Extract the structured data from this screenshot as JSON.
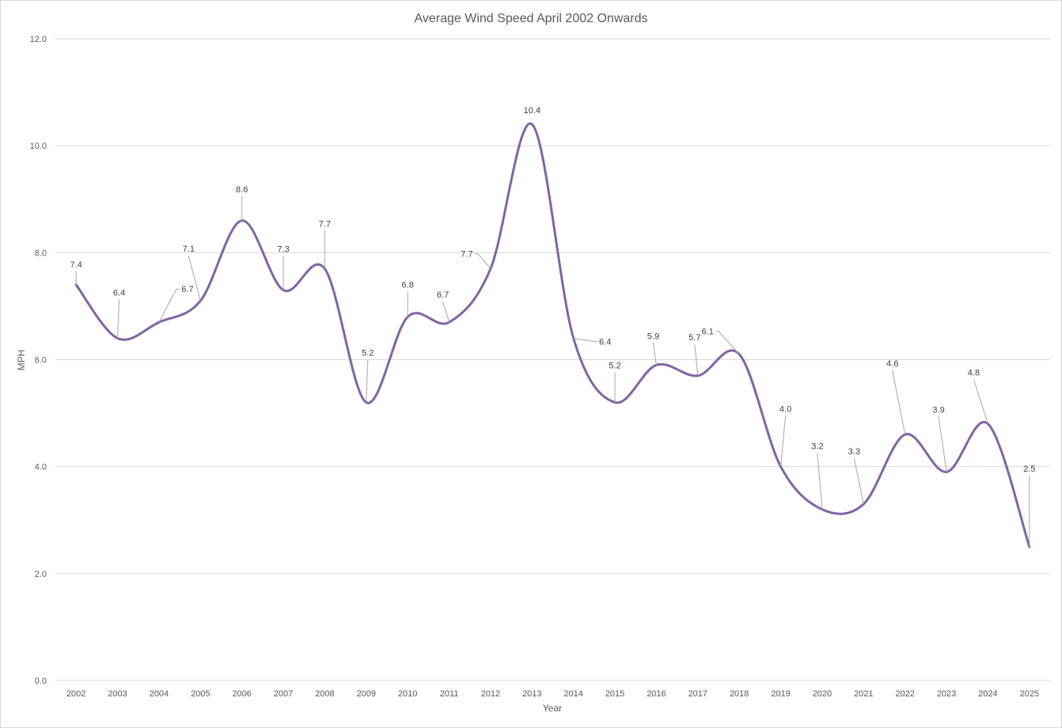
{
  "chart_data": {
    "type": "line",
    "title": "Average Wind Speed April 2002 Onwards",
    "xlabel": "Year",
    "ylabel": "MPH",
    "ylim": [
      0,
      12
    ],
    "yticks": [
      "0.0",
      "2.0",
      "4.0",
      "6.0",
      "8.0",
      "10.0",
      "12.0"
    ],
    "grid": true,
    "smoothed": true,
    "line_color": "#8064a2",
    "categories": [
      "2002",
      "2003",
      "2004",
      "2005",
      "2006",
      "2007",
      "2008",
      "2009",
      "2010",
      "2011",
      "2012",
      "2013",
      "2014",
      "2015",
      "2016",
      "2017",
      "2018",
      "2019",
      "2020",
      "2021",
      "2022",
      "2023",
      "2024",
      "2025"
    ],
    "values": [
      7.4,
      6.4,
      6.7,
      7.1,
      8.6,
      7.3,
      7.7,
      5.2,
      6.8,
      6.7,
      7.7,
      10.4,
      6.4,
      5.2,
      5.9,
      5.7,
      6.1,
      4.0,
      3.2,
      3.3,
      4.6,
      3.9,
      4.8,
      2.5
    ],
    "data_labels": [
      "7.4",
      "6.4",
      "6.7",
      "7.1",
      "8.6",
      "7.3",
      "7.7",
      "5.2",
      "6.8",
      "6.7",
      "7.7",
      "10.4",
      "6.4",
      "5.2",
      "5.9",
      "5.7",
      "6.1",
      "4.0",
      "3.2",
      "3.3",
      "4.6",
      "3.9",
      "4.8",
      "2.5"
    ]
  }
}
